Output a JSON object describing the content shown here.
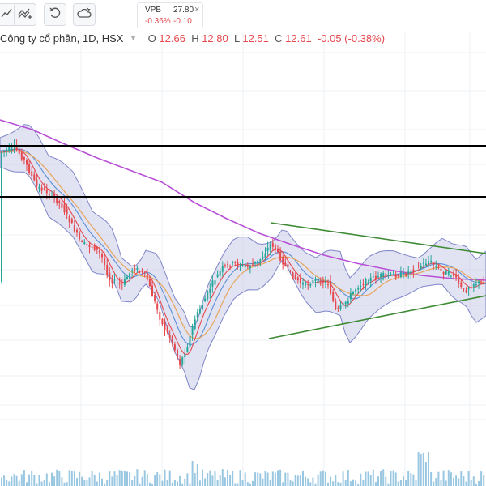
{
  "toolbar": {
    "buttons": [
      {
        "name": "chart-type-button",
        "icon": "chart-type-icon"
      },
      {
        "name": "indicators-button",
        "icon": "indicators-icon"
      },
      {
        "name": "undo-button",
        "icon": "undo-icon"
      },
      {
        "name": "cloud-save-button",
        "icon": "cloud-icon"
      }
    ]
  },
  "ticker": {
    "symbol": "VPB",
    "price": "27.80",
    "change_pct": "-0.36%",
    "change": "-0.10",
    "close_label": "×"
  },
  "legend": {
    "title": "Công ty cổ phần, 1D, HSX",
    "open_label": "O",
    "open": "12.66",
    "high_label": "H",
    "high": "12.80",
    "low_label": "L",
    "low": "12.51",
    "close_label": "C",
    "close": "12.61",
    "change": "-0.05 (-0.38%)"
  },
  "colors": {
    "up": "#26a69a",
    "down": "#e5484d",
    "ma_long": "#b84fd6",
    "ma_mid": "#e8a55a",
    "ma_short": "#e5484d",
    "band": "#c8cbe8",
    "band_line": "#7f86c8",
    "trend": "#3d8a34",
    "sr_line": "#000000",
    "volume": "#7fb9d9"
  }
}
